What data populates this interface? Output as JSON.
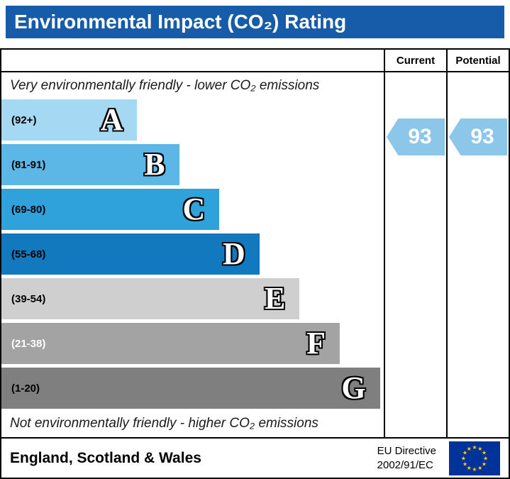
{
  "title": "Environmental Impact (CO₂) Rating",
  "columns": {
    "current": "Current",
    "potential": "Potential"
  },
  "notes": {
    "top": "Very environmentally friendly - lower CO₂ emissions",
    "bottom": "Not environmentally friendly - higher CO₂ emissions"
  },
  "chart_data": {
    "type": "bar",
    "title": "Environmental Impact (CO₂) Rating",
    "bands": [
      {
        "letter": "A",
        "range": "(92+)",
        "range_min": 92,
        "range_max": 100,
        "color": "#A5D9F3",
        "range_color": "#000000",
        "width_pct": 35.5
      },
      {
        "letter": "B",
        "range": "(81-91)",
        "range_min": 81,
        "range_max": 91,
        "color": "#5CB7E6",
        "range_color": "#000000",
        "width_pct": 46.5
      },
      {
        "letter": "C",
        "range": "(69-80)",
        "range_min": 69,
        "range_max": 80,
        "color": "#2FA2DC",
        "range_color": "#000000",
        "width_pct": 57
      },
      {
        "letter": "D",
        "range": "(55-68)",
        "range_min": 55,
        "range_max": 68,
        "color": "#1279BE",
        "range_color": "#000000",
        "width_pct": 67.5
      },
      {
        "letter": "E",
        "range": "(39-54)",
        "range_min": 39,
        "range_max": 54,
        "color": "#CFCFCF",
        "range_color": "#000000",
        "width_pct": 78
      },
      {
        "letter": "F",
        "range": "(21-38)",
        "range_min": 21,
        "range_max": 38,
        "color": "#A3A3A3",
        "range_color": "#FFFFFF",
        "width_pct": 88.5
      },
      {
        "letter": "G",
        "range": "(1-20)",
        "range_min": 1,
        "range_max": 20,
        "color": "#7F7F7F",
        "range_color": "#000000",
        "width_pct": 99
      }
    ],
    "current": 93,
    "current_label": "93",
    "current_band": "A",
    "potential": 93,
    "potential_label": "93",
    "potential_band": "A",
    "legend_position": "none",
    "grid": false
  },
  "footer": {
    "region": "England, Scotland & Wales",
    "directive_line1": "EU Directive",
    "directive_line2": "2002/91/EC"
  },
  "colors": {
    "header_bg": "#175CA8",
    "header_text": "#FFFFFF",
    "arrow": "#8CC7E9",
    "eu_flag_bg": "#003399",
    "eu_flag_stars": "#FFCC00"
  }
}
